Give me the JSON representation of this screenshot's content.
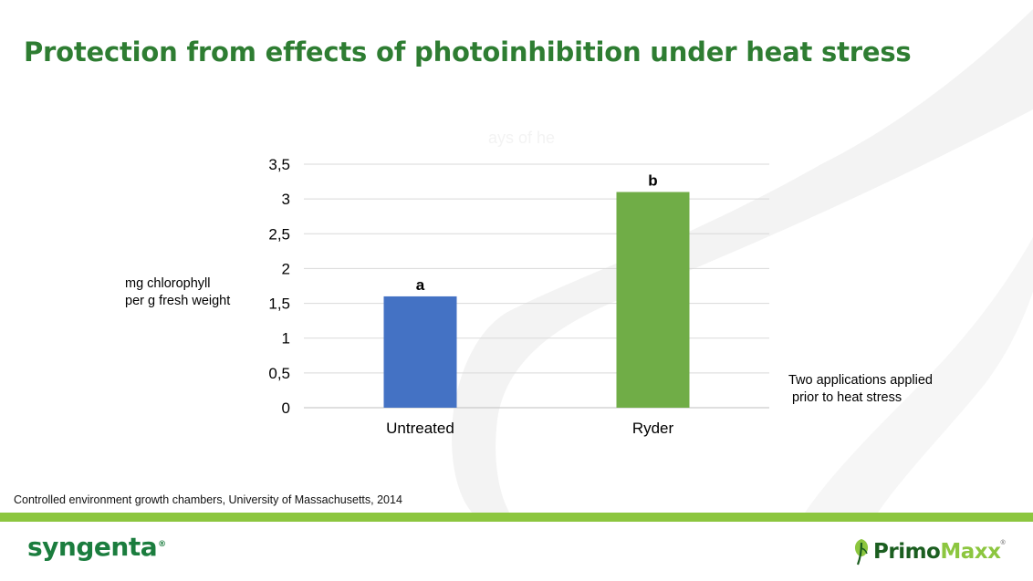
{
  "slide": {
    "title": "Protection from effects of photoinhibition under heat stress",
    "hidden_chart_title": "ays of he",
    "ylabel_text": "mg chlorophyll\nper g fresh weight",
    "note": "Two applications applied\n prior to heat stress",
    "source": "Controlled environment growth chambers, University of Massachusetts, 2014"
  },
  "logos": {
    "syngenta": "syngenta",
    "syngenta_reg": "®",
    "primo_1": "Primo",
    "primo_2": "Maxx",
    "primo_reg": "®"
  },
  "colors": {
    "title": "#2e7d32",
    "green_band": "#8cc63f"
  },
  "chart_data": {
    "type": "bar",
    "categories": [
      "Untreated",
      "Ryder"
    ],
    "values": [
      1.6,
      3.1
    ],
    "bar_colors": [
      "#4472c4",
      "#70ad47"
    ],
    "bar_labels": [
      "a",
      "b"
    ],
    "ylabel": "mg chlorophyll per g fresh weight",
    "ylim": [
      0,
      3.5
    ],
    "yticks": [
      0,
      0.5,
      1,
      1.5,
      2,
      2.5,
      3,
      3.5
    ],
    "ytick_labels": [
      "0",
      "0,5",
      "1",
      "1,5",
      "2",
      "2,5",
      "3",
      "3,5"
    ],
    "grid": true,
    "legend": "none"
  }
}
